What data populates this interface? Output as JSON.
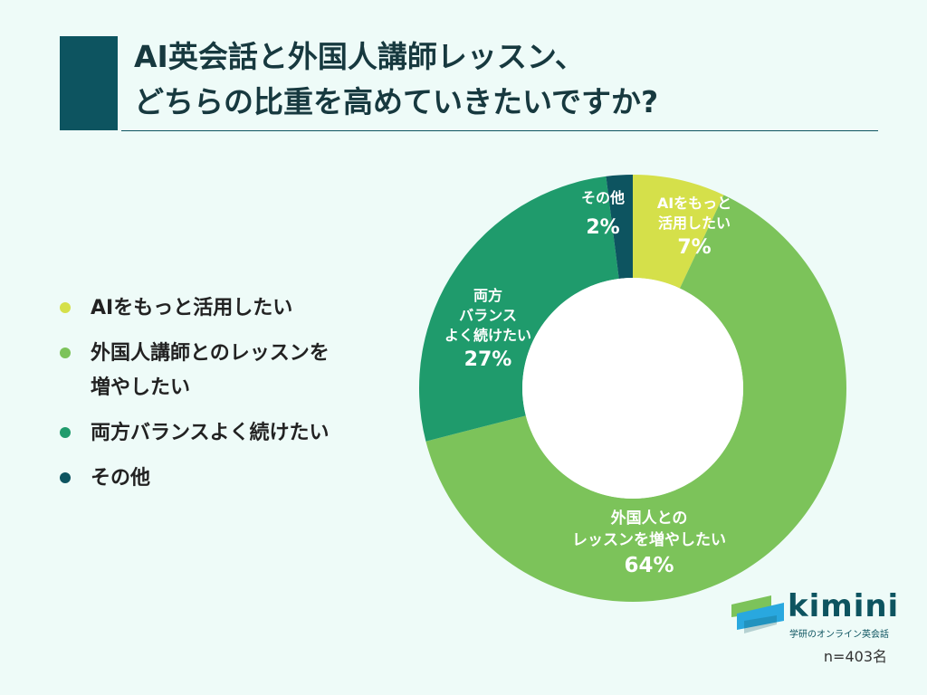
{
  "title": {
    "line1": "AI英会話と外国人講師レッスン、",
    "line2": "どちらの比重を高めていきたいですか?"
  },
  "legend": [
    {
      "line1": "AIをもっと活用したい",
      "line2": "",
      "color": "#d5e04a"
    },
    {
      "line1": "外国人講師とのレッスンを",
      "line2": "増やしたい",
      "color": "#7cc35a"
    },
    {
      "line1": "両方バランスよく続けたい",
      "line2": "",
      "color": "#1f9b6c"
    },
    {
      "line1": "その他",
      "line2": "",
      "color": "#0d5460"
    }
  ],
  "chart_data": {
    "type": "pie",
    "variant": "donut",
    "start_at": "12 o'clock",
    "direction": "clockwise",
    "slices": [
      {
        "label_lines": [
          "AIをもっと",
          "活用したい"
        ],
        "pct_text": "7%",
        "value": 7,
        "color": "#d5e04a",
        "text_color": "#17393f"
      },
      {
        "label_lines": [
          "外国人との",
          "レッスンを増やしたい"
        ],
        "pct_text": "64%",
        "value": 64,
        "color": "#7cc35a",
        "text_color": "#ffffff"
      },
      {
        "label_lines": [
          "両方",
          "バランス",
          "よく続けたい"
        ],
        "pct_text": "27%",
        "value": 27,
        "color": "#1f9b6c",
        "text_color": "#ffffff"
      },
      {
        "label_lines": [
          "その他"
        ],
        "pct_text": "2%",
        "value": 2,
        "color": "#0d5460",
        "text_color": "#17393f"
      }
    ]
  },
  "logo": {
    "word": "kimini",
    "subtitle": "学研のオンライン英会話"
  },
  "sample_size": "n=403名"
}
